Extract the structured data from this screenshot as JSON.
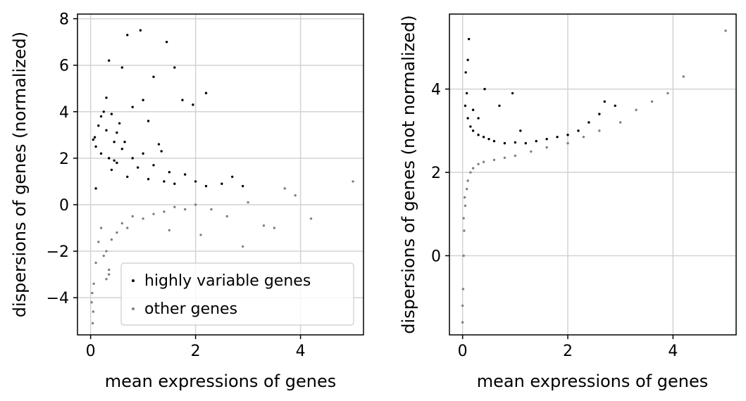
{
  "chart_data": [
    {
      "type": "scatter",
      "xlabel": "mean expressions of genes",
      "ylabel": "dispersions of genes (normalized)",
      "xlim": [
        -0.25,
        5.2
      ],
      "ylim": [
        -5.6,
        8.2
      ],
      "xticks": [
        0,
        2,
        4
      ],
      "yticks": [
        -4,
        -2,
        0,
        2,
        4,
        6,
        8
      ],
      "grid": true,
      "legend": {
        "position": "lower-right",
        "entries": [
          "highly variable genes",
          "other genes"
        ]
      },
      "colors": {
        "highly_variable": "#000000",
        "other": "#808080"
      },
      "series": [
        {
          "name": "highly variable genes",
          "x": [
            0.05,
            0.1,
            0.2,
            0.3,
            0.35,
            0.4,
            0.45,
            0.5,
            0.6,
            0.7,
            0.8,
            0.9,
            1.0,
            1.1,
            1.2,
            1.3,
            1.4,
            1.5,
            1.6,
            1.8,
            2.0,
            2.2,
            2.5,
            0.95,
            0.7,
            1.45,
            1.2,
            0.35,
            0.6,
            0.8,
            0.3,
            0.55,
            1.6,
            1.75,
            1.95,
            2.2,
            0.25,
            0.2,
            0.15,
            0.08,
            0.4,
            1.0,
            2.9,
            2.7,
            0.1,
            0.5,
            1.1,
            0.65,
            0.45,
            1.35
          ],
          "y": [
            2.8,
            2.5,
            2.2,
            3.2,
            2.0,
            1.5,
            2.7,
            1.8,
            2.4,
            1.2,
            2.0,
            1.6,
            2.2,
            1.1,
            1.7,
            2.6,
            1.0,
            1.4,
            0.9,
            1.3,
            1.0,
            0.8,
            0.9,
            7.5,
            7.3,
            7.0,
            5.5,
            6.2,
            5.9,
            4.2,
            4.6,
            3.5,
            5.9,
            4.5,
            4.3,
            4.8,
            4.0,
            3.8,
            3.4,
            2.9,
            3.9,
            4.5,
            0.8,
            1.2,
            0.7,
            3.1,
            3.6,
            2.7,
            1.9,
            2.3
          ]
        },
        {
          "name": "other genes",
          "x": [
            0.02,
            0.04,
            0.06,
            0.1,
            0.15,
            0.2,
            0.3,
            0.35,
            0.4,
            0.5,
            0.6,
            0.7,
            0.8,
            1.0,
            1.2,
            1.4,
            1.6,
            1.8,
            2.0,
            2.3,
            2.6,
            3.0,
            3.3,
            3.7,
            3.9,
            4.2,
            5.0,
            0.3,
            0.35,
            0.03,
            0.05,
            0.25,
            2.9,
            2.1,
            1.5,
            3.5
          ],
          "y": [
            -4.2,
            -5.1,
            -3.4,
            -2.5,
            -1.6,
            -1.0,
            -2.0,
            -2.8,
            -1.5,
            -1.2,
            -0.8,
            -1.0,
            -0.5,
            -0.6,
            -0.4,
            -0.3,
            -0.1,
            -0.2,
            0.0,
            -0.2,
            -0.5,
            0.1,
            -0.9,
            0.7,
            0.4,
            -0.6,
            1.0,
            -3.2,
            -3.0,
            -3.8,
            -4.6,
            -2.2,
            -1.8,
            -1.3,
            -1.1,
            -1.0
          ]
        }
      ]
    },
    {
      "type": "scatter",
      "xlabel": "mean expressions of genes",
      "ylabel": "dispersions of genes (not normalized)",
      "xlim": [
        -0.25,
        5.2
      ],
      "ylim": [
        -1.9,
        5.8
      ],
      "xticks": [
        0,
        2,
        4
      ],
      "yticks": [
        0,
        2,
        4
      ],
      "grid": true,
      "colors": {
        "highly_variable": "#000000",
        "other": "#808080"
      },
      "series": [
        {
          "name": "highly variable genes",
          "x": [
            0.05,
            0.08,
            0.1,
            0.15,
            0.2,
            0.3,
            0.4,
            0.5,
            0.6,
            0.8,
            1.0,
            1.2,
            1.4,
            1.6,
            1.8,
            2.0,
            2.2,
            2.4,
            2.6,
            2.7,
            2.9,
            0.12,
            0.1,
            0.42,
            0.7,
            0.95,
            0.06,
            0.2,
            0.3,
            1.1
          ],
          "y": [
            3.6,
            3.9,
            3.3,
            3.1,
            3.0,
            2.9,
            2.85,
            2.8,
            2.75,
            2.7,
            2.72,
            2.7,
            2.75,
            2.8,
            2.85,
            2.9,
            3.0,
            3.2,
            3.4,
            3.7,
            3.6,
            5.2,
            4.7,
            4.0,
            3.6,
            3.9,
            4.4,
            3.5,
            3.3,
            3.0
          ]
        },
        {
          "name": "other genes",
          "x": [
            0.0,
            0.01,
            0.02,
            0.03,
            0.05,
            0.08,
            0.1,
            0.15,
            0.2,
            0.3,
            0.4,
            0.6,
            0.8,
            1.0,
            1.3,
            1.6,
            2.0,
            2.3,
            2.6,
            3.0,
            3.3,
            3.6,
            3.9,
            4.2,
            5.0,
            0.0,
            0.02,
            0.04
          ],
          "y": [
            -1.6,
            -0.8,
            0.0,
            0.6,
            1.2,
            1.6,
            1.8,
            2.0,
            2.1,
            2.2,
            2.25,
            2.3,
            2.35,
            2.4,
            2.5,
            2.6,
            2.7,
            2.85,
            3.0,
            3.2,
            3.5,
            3.7,
            3.9,
            4.3,
            5.4,
            -1.2,
            0.9,
            1.4
          ]
        }
      ]
    }
  ]
}
